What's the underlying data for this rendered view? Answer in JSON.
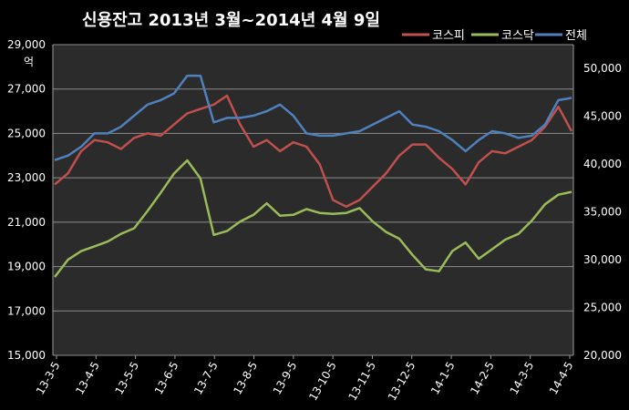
{
  "chart_data": {
    "type": "line",
    "title": "신용잔고  2013년 3월~2014년 4월 9일",
    "ylabel_left": "억",
    "left_axis": {
      "ylim": [
        15000,
        29000
      ],
      "ticks": [
        "15,000",
        "17,000",
        "19,000",
        "21,000",
        "23,000",
        "25,000",
        "27,000",
        "29,000"
      ]
    },
    "right_axis": {
      "ylim": [
        20000,
        52500
      ],
      "ticks": [
        "20,000",
        "25,000",
        "30,000",
        "35,000",
        "40,000",
        "45,000",
        "50,000"
      ]
    },
    "x_ticks": [
      "13-3-5",
      "13-4-5",
      "13-5-5",
      "13-6-5",
      "13-7-5",
      "13-8-5",
      "13-9-5",
      "13-10-5",
      "13-11-5",
      "13-12-5",
      "14-1-5",
      "14-2-5",
      "14-3-5",
      "14-4-5"
    ],
    "grid": true,
    "legend_position": "top-right",
    "series": [
      {
        "name": "코스피",
        "axis": "left",
        "color": "#c0504d",
        "values": [
          22700,
          23200,
          24200,
          24700,
          24600,
          24300,
          24800,
          25000,
          24900,
          25400,
          25900,
          26100,
          26300,
          26700,
          25400,
          24400,
          24700,
          24200,
          24600,
          24400,
          23600,
          22000,
          21700,
          22000,
          22600,
          23200,
          24000,
          24500,
          24500,
          23900,
          23400,
          22700,
          23700,
          24200,
          24100,
          24400,
          24700,
          25300,
          26200,
          25100
        ]
      },
      {
        "name": "코스닥",
        "axis": "right",
        "color": "#9bbb59",
        "values": [
          28200,
          30000,
          30900,
          31400,
          31900,
          32700,
          33300,
          35100,
          37000,
          39000,
          40400,
          38500,
          32600,
          33000,
          34000,
          34700,
          35900,
          34600,
          34700,
          35300,
          34900,
          34800,
          34900,
          35400,
          34000,
          32900,
          32200,
          30500,
          29000,
          28800,
          30900,
          31800,
          30100,
          31100,
          32100,
          32700,
          34100,
          35800,
          36800,
          37100
        ]
      },
      {
        "name": "전체",
        "axis": "left",
        "color": "#4f81bd",
        "values": [
          23800,
          24000,
          24400,
          25000,
          25000,
          25300,
          25800,
          26300,
          26500,
          26800,
          27600,
          27600,
          25500,
          25700,
          25700,
          25800,
          26000,
          26300,
          25800,
          25000,
          24900,
          24900,
          25000,
          25100,
          25400,
          25700,
          26000,
          25400,
          25300,
          25100,
          24700,
          24200,
          24700,
          25100,
          25000,
          24800,
          24900,
          25400,
          26500,
          26600
        ]
      }
    ]
  }
}
